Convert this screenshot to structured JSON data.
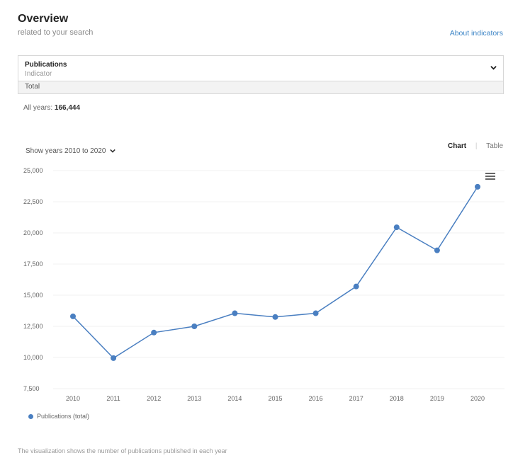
{
  "header": {
    "title": "Overview",
    "subtitle": "related to your search",
    "about_link": "About indicators"
  },
  "indicator": {
    "name": "Publications",
    "subtitle": "Indicator",
    "selected_option": "Total"
  },
  "summary": {
    "label": "All years:",
    "value": "166,444"
  },
  "controls": {
    "year_range": "Show years 2010 to 2020",
    "view_chart": "Chart",
    "view_table": "Table"
  },
  "footnote": "The visualization shows the number of publications published in each year",
  "chart_data": {
    "type": "line",
    "x": [
      "2010",
      "2011",
      "2012",
      "2013",
      "2014",
      "2015",
      "2016",
      "2017",
      "2018",
      "2019",
      "2020"
    ],
    "series": [
      {
        "name": "Publications (total)",
        "values": [
          13300,
          9950,
          12000,
          12500,
          13550,
          13250,
          13550,
          15700,
          20450,
          18600,
          23700
        ],
        "color": "#4a7fc1"
      }
    ],
    "ylim": [
      7500,
      25000
    ],
    "yticks": [
      "25,000",
      "22,500",
      "20,000",
      "17,500",
      "15,000",
      "12,500",
      "10,000",
      "7,500"
    ],
    "grid": true,
    "legend": "bottom-left"
  }
}
